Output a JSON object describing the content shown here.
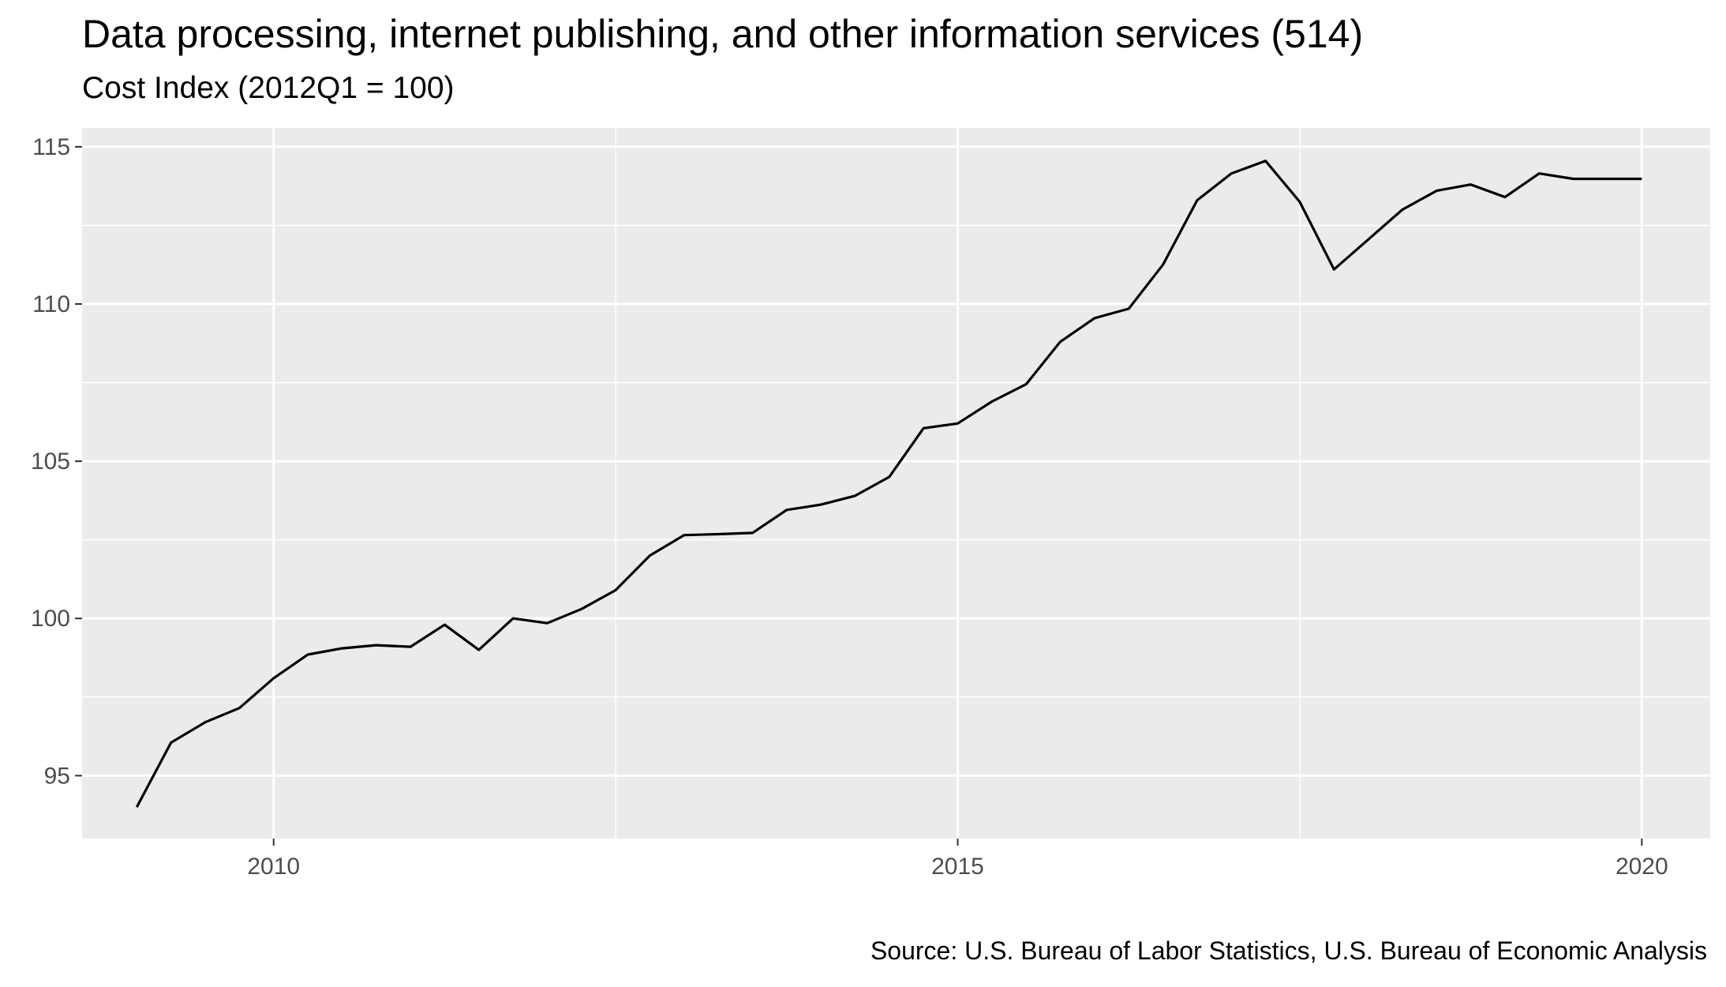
{
  "chart_data": {
    "type": "line",
    "title": "Data processing, internet publishing, and other information services (514)",
    "subtitle": "Cost Index (2012Q1 = 100)",
    "caption": "Source: U.S. Bureau of Labor Statistics, U.S. Bureau of Economic Analysis",
    "xlabel": "",
    "ylabel": "",
    "x_range": [
      2008.6,
      2020.5
    ],
    "y_range": [
      93.0,
      115.6
    ],
    "x_ticks": [
      2010,
      2015,
      2020
    ],
    "y_ticks": [
      95,
      100,
      105,
      110,
      115
    ],
    "grid": true,
    "series": [
      {
        "color": "#000000",
        "x": [
          2009.0,
          2009.25,
          2009.5,
          2009.75,
          2010.0,
          2010.25,
          2010.5,
          2010.75,
          2011.0,
          2011.25,
          2011.5,
          2011.75,
          2012.0,
          2012.25,
          2012.5,
          2012.75,
          2013.0,
          2013.25,
          2013.5,
          2013.75,
          2014.0,
          2014.25,
          2014.5,
          2014.75,
          2015.0,
          2015.25,
          2015.5,
          2015.75,
          2016.0,
          2016.25,
          2016.5,
          2016.75,
          2017.0,
          2017.25,
          2017.5,
          2017.75,
          2018.0,
          2018.25,
          2018.5,
          2018.75,
          2019.0,
          2019.25,
          2019.5,
          2019.75,
          2020.0
        ],
        "y": [
          94.0,
          96.05,
          96.7,
          97.15,
          98.1,
          98.85,
          99.05,
          99.15,
          99.1,
          99.8,
          99.0,
          100.0,
          99.85,
          100.3,
          100.9,
          102.0,
          102.65,
          102.68,
          102.72,
          103.45,
          103.62,
          103.9,
          104.5,
          106.05,
          106.2,
          106.9,
          107.45,
          108.8,
          109.55,
          109.85,
          111.25,
          113.3,
          114.15,
          114.55,
          113.25,
          111.1,
          112.05,
          113.0,
          113.6,
          113.8,
          113.4,
          114.15,
          113.98,
          113.98,
          113.98
        ]
      }
    ]
  }
}
